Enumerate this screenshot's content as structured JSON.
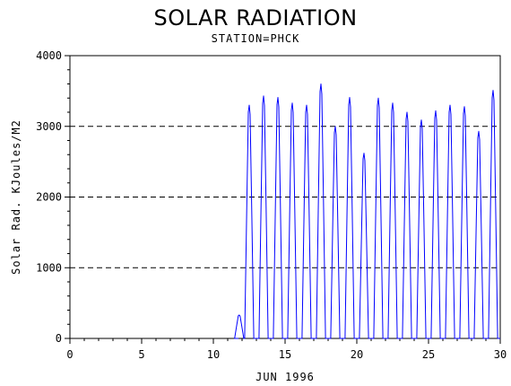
{
  "chart_data": {
    "type": "line",
    "title": "SOLAR RADIATION",
    "subtitle": "STATION=PHCK",
    "xlabel": "JUN 1996",
    "ylabel": "Solar Rad. KJoules/M2",
    "xlim": [
      0,
      30
    ],
    "ylim": [
      0,
      4000
    ],
    "x_ticks": [
      0,
      5,
      10,
      15,
      20,
      25,
      30
    ],
    "y_ticks": [
      0,
      1000,
      2000,
      3000,
      4000
    ],
    "y_gridlines": [
      1000,
      2000,
      3000,
      4000
    ],
    "grid_style": "dashed horizontal",
    "line_color": "#0000ff",
    "daily_peaks": [
      {
        "day": 11.8,
        "value": 330
      },
      {
        "day": 12.5,
        "value": 3300
      },
      {
        "day": 13.5,
        "value": 3430
      },
      {
        "day": 14.5,
        "value": 3410
      },
      {
        "day": 15.5,
        "value": 3330
      },
      {
        "day": 16.5,
        "value": 3300
      },
      {
        "day": 17.5,
        "value": 3600
      },
      {
        "day": 18.5,
        "value": 3000
      },
      {
        "day": 19.5,
        "value": 3410
      },
      {
        "day": 20.5,
        "value": 2620
      },
      {
        "day": 21.5,
        "value": 3400
      },
      {
        "day": 22.5,
        "value": 3330
      },
      {
        "day": 23.5,
        "value": 3200
      },
      {
        "day": 24.5,
        "value": 3090
      },
      {
        "day": 25.5,
        "value": 3220
      },
      {
        "day": 26.5,
        "value": 3300
      },
      {
        "day": 27.5,
        "value": 3280
      },
      {
        "day": 28.5,
        "value": 2930
      },
      {
        "day": 29.5,
        "value": 3510
      }
    ]
  }
}
